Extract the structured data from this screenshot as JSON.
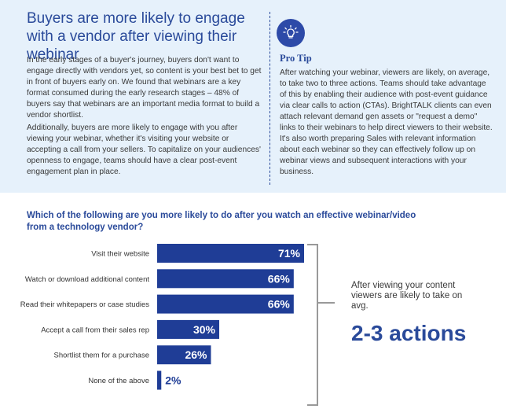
{
  "header": {
    "headline": "Buyers are more likely to engage with a vendor after viewing their webinar",
    "paragraph_1": "In the early stages of a buyer's journey, buyers don't want to engage directly with vendors yet, so content is your best bet to get in front of buyers early on. We found that webinars are a key format consumed during the early research stages – 48% of buyers say that webinars are an important media format to build a vendor shortlist.",
    "paragraph_2": "Additionally, buyers are more likely to engage with you after viewing your webinar, whether it's visiting your website or accepting a call from your sellers. To capitalize on your audiences' openness to engage, teams should have a clear post-event engagement plan in place."
  },
  "pro_tip": {
    "icon": "lightbulb-icon",
    "title": "Pro Tip",
    "body": "After watching your webinar, viewers are likely, on average, to take two to three actions. Teams should take advantage of this by enabling their audience with post-event guidance via clear calls to action (CTAs). BrightTALK clients can even attach relevant demand gen assets or \"request a demo\" links to their webinars to help direct viewers to their website. It's also worth preparing Sales with relevant information about each webinar so they can effectively follow up on webinar views and subsequent interactions with your business."
  },
  "chart_data": {
    "type": "bar",
    "orientation": "horizontal",
    "title": "Which of the following are you more likely to do after you watch an effective webinar/video from a technology vendor?",
    "categories": [
      "Visit their website",
      "Watch or download additional content",
      "Read their whitepapers or case studies",
      "Accept a call from their sales rep",
      "Shortlist them for a purchase",
      "None of the above"
    ],
    "values": [
      71,
      66,
      66,
      30,
      26,
      2
    ],
    "value_labels": [
      "71%",
      "66%",
      "66%",
      "30%",
      "26%",
      "2%"
    ],
    "unit": "%",
    "xlim": [
      0,
      71
    ],
    "bar_color": "#1f3d96",
    "small_label_color": "#1f3d96"
  },
  "callout": {
    "text": "After viewing your content viewers are likely to take on avg.",
    "big": "2-3 actions"
  },
  "colors": {
    "brand_blue": "#2a4a9a",
    "panel_bg": "#e6f1fb",
    "bar": "#1f3d96",
    "bracket": "#999999"
  }
}
